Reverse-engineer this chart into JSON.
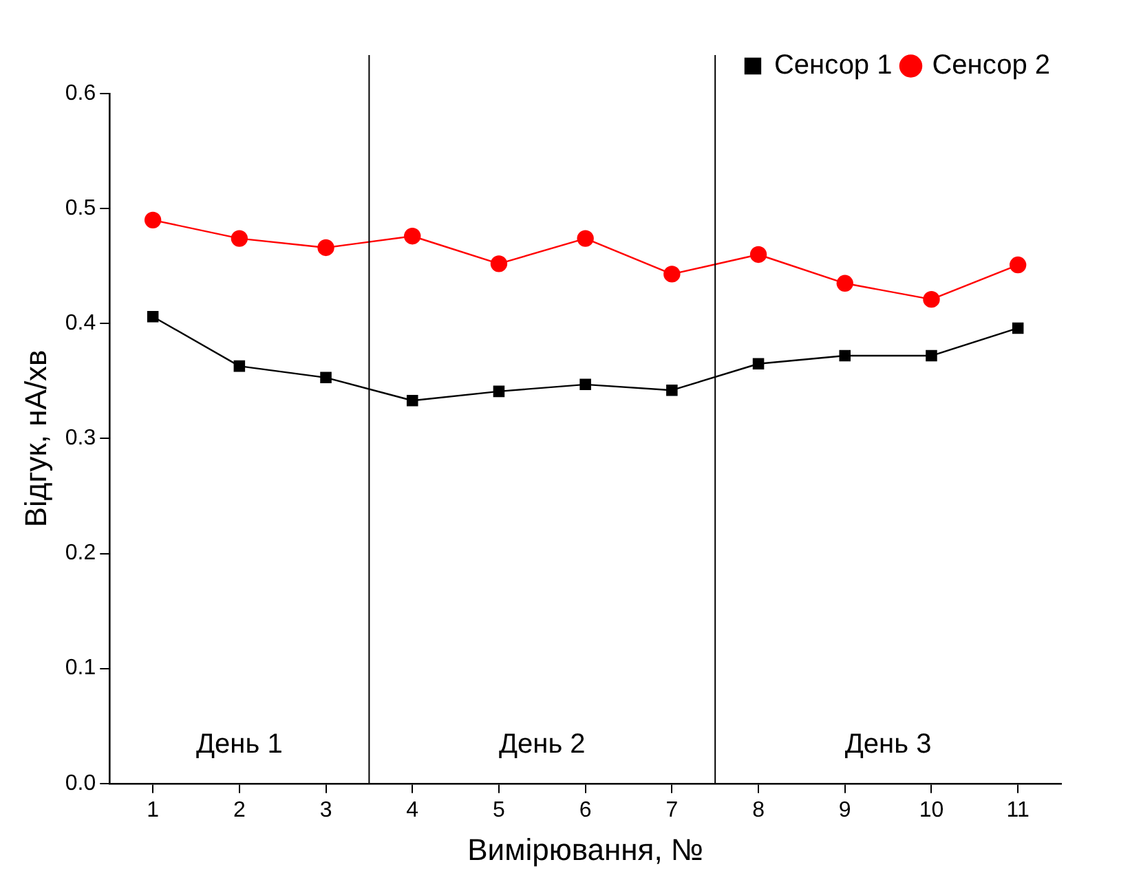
{
  "chart_data": {
    "type": "line",
    "xlabel": "Вимірювання, №",
    "ylabel": "Відгук, нА/хв",
    "x": [
      1,
      2,
      3,
      4,
      5,
      6,
      7,
      8,
      9,
      10,
      11
    ],
    "series": [
      {
        "name": "Сенсор 1",
        "color": "#000000",
        "marker": "square",
        "values": [
          0.406,
          0.363,
          0.353,
          0.333,
          0.341,
          0.347,
          0.342,
          0.365,
          0.372,
          0.372,
          0.396
        ]
      },
      {
        "name": "Сенсор 2",
        "color": "#ff0000",
        "marker": "circle",
        "values": [
          0.49,
          0.474,
          0.466,
          0.476,
          0.452,
          0.474,
          0.443,
          0.46,
          0.435,
          0.421,
          0.451
        ]
      }
    ],
    "xlim": [
      0.5,
      11.5
    ],
    "xticks": [
      1,
      2,
      3,
      4,
      5,
      6,
      7,
      8,
      9,
      10,
      11
    ],
    "ylim": [
      0,
      0.6
    ],
    "yticks": [
      {
        "value": 0,
        "label": "0.0"
      },
      0.1,
      0.2,
      0.3,
      0.4,
      0.5,
      0.6
    ],
    "ref_lines": [
      {
        "axis": "x",
        "value": 3.5,
        "color": "#000000"
      },
      {
        "axis": "x",
        "value": 7.5,
        "color": "#000000"
      }
    ],
    "annotations": [
      "День 1",
      "День 2",
      "День 3"
    ],
    "legend": "top right",
    "line_style": "solid",
    "grid": false
  }
}
